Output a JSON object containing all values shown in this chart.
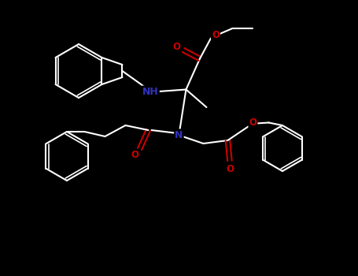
{
  "bg_color": "#000000",
  "bond_color": "#ffffff",
  "N_color": "#3333bb",
  "O_color": "#cc0000",
  "lw": 1.5,
  "lw_aromatic": 1.2,
  "fs": 8.5,
  "figsize": [
    4.55,
    3.5
  ],
  "dpi": 100,
  "xlim": [
    0,
    9.1
  ],
  "ylim": [
    0,
    7.0
  ]
}
